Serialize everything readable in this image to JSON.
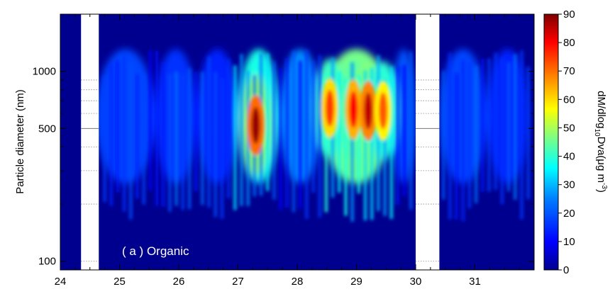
{
  "chart_data": {
    "type": "heatmap",
    "panel_label": "( a ) Organic",
    "xlabel": "",
    "ylabel": "Particle diameter (nm)",
    "x_range": [
      24,
      32
    ],
    "x_ticks": [
      "24",
      "25",
      "26",
      "27",
      "28",
      "29",
      "30",
      "31"
    ],
    "x_tick_values": [
      24,
      25,
      26,
      27,
      28,
      29,
      30,
      31
    ],
    "y_scale": "log",
    "y_range": [
      90,
      2000
    ],
    "y_ticks": [
      "100",
      "500",
      "1000"
    ],
    "y_tick_values": [
      100,
      500,
      1000
    ],
    "colorbar": {
      "label_prefix": "dM/dlog",
      "label_sub": "10",
      "label_mid": "Dva(μg m",
      "label_sup": "-3",
      "label_suffix": ")",
      "range": [
        0,
        90
      ],
      "ticks": [
        "0",
        "10",
        "20",
        "30",
        "40",
        "50",
        "60",
        "70",
        "80",
        "90"
      ],
      "tick_values": [
        0,
        10,
        20,
        30,
        40,
        50,
        60,
        70,
        80,
        90
      ],
      "colormap": [
        "#00008f",
        "#0000ff",
        "#0080ff",
        "#00ffff",
        "#80ff80",
        "#ffff00",
        "#ff8000",
        "#ff0000",
        "#800000"
      ]
    },
    "missing_data_x": [
      [
        24.35,
        24.65
      ],
      [
        30.0,
        30.4
      ]
    ],
    "hotspots": [
      {
        "x": 27.3,
        "diameter": 520,
        "value": 88
      },
      {
        "x": 28.55,
        "diameter": 640,
        "value": 75
      },
      {
        "x": 28.95,
        "diameter": 630,
        "value": 80
      },
      {
        "x": 29.2,
        "diameter": 620,
        "value": 85
      },
      {
        "x": 29.45,
        "diameter": 620,
        "value": 72
      }
    ]
  }
}
